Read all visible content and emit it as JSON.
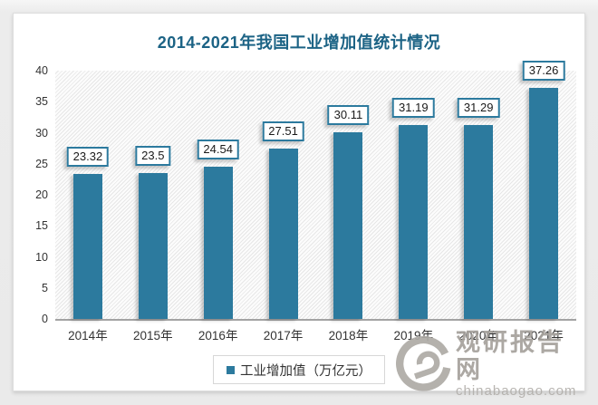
{
  "chart_data": {
    "type": "bar",
    "title": "2014-2021年我国工业增加值统计情况",
    "categories": [
      "2014年",
      "2015年",
      "2016年",
      "2017年",
      "2018年",
      "2019年",
      "2020年",
      "2021年"
    ],
    "series": [
      {
        "name": "工业增加值（万亿元）",
        "values": [
          23.32,
          23.5,
          24.54,
          27.51,
          30.11,
          31.19,
          31.29,
          37.26
        ],
        "color": "#2c7a9e"
      }
    ],
    "data_labels": [
      "23.32",
      "23.5",
      "24.54",
      "27.51",
      "30.11",
      "31.19",
      "31.29",
      "37.26"
    ],
    "xlabel": "",
    "ylabel": "",
    "ylim": [
      0,
      40
    ],
    "y_ticks": [
      0,
      5,
      10,
      15,
      20,
      25,
      30,
      35,
      40
    ],
    "grid": false,
    "legend_position": "bottom-center",
    "plot_background": "diagonal-hatch"
  },
  "legend": {
    "label": "工业增加值（万亿元）"
  },
  "watermark": {
    "name": "观研报告网",
    "url": "chinabaogao.com"
  },
  "colors": {
    "title": "#1c6385",
    "bar": "#2c7a9e",
    "axis_text": "#333333",
    "axis_line": "#a3a3a3"
  }
}
